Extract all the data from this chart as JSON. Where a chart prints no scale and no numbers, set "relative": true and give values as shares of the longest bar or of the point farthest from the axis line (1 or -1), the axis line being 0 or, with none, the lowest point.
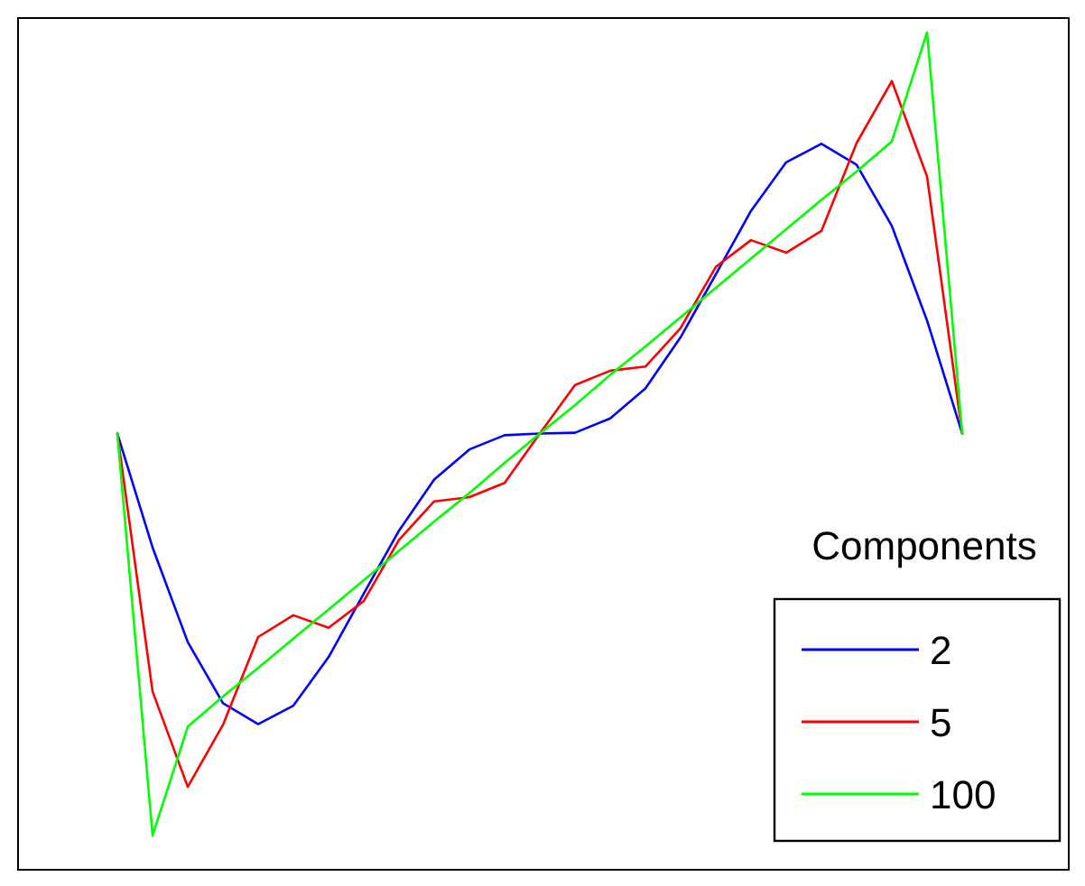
{
  "chart_data": {
    "type": "line",
    "relative": true,
    "legend_title": "Components",
    "legend": "bottom right",
    "categories": [
      null,
      null,
      null,
      null,
      null,
      null,
      null,
      null,
      null,
      null,
      null,
      null,
      null,
      null,
      null,
      null,
      null,
      null,
      null,
      null,
      null,
      null,
      null,
      null,
      null
    ],
    "series": [
      {
        "name": "2",
        "color": "#0000ff",
        "values": [
          0.521,
          0.385,
          0.272,
          0.199,
          0.174,
          0.196,
          0.254,
          0.33,
          0.405,
          0.466,
          0.502,
          0.519,
          0.521,
          0.522,
          0.539,
          0.575,
          0.636,
          0.711,
          0.787,
          0.845,
          0.867,
          0.842,
          0.769,
          0.656,
          0.521
        ]
      },
      {
        "name": "5",
        "color": "#ff0000",
        "values": [
          0.521,
          0.213,
          0.099,
          0.173,
          0.278,
          0.304,
          0.289,
          0.321,
          0.394,
          0.44,
          0.445,
          0.462,
          0.521,
          0.579,
          0.596,
          0.601,
          0.647,
          0.72,
          0.752,
          0.737,
          0.763,
          0.868,
          0.942,
          0.828,
          0.521
        ]
      },
      {
        "name": "100",
        "color": "#00ff00",
        "values": [
          0.521,
          0.041,
          0.171,
          0.207,
          0.241,
          0.276,
          0.311,
          0.346,
          0.381,
          0.416,
          0.45,
          0.486,
          0.521,
          0.555,
          0.591,
          0.625,
          0.66,
          0.695,
          0.73,
          0.765,
          0.8,
          0.834,
          0.87,
          1,
          0.521
        ]
      }
    ]
  }
}
